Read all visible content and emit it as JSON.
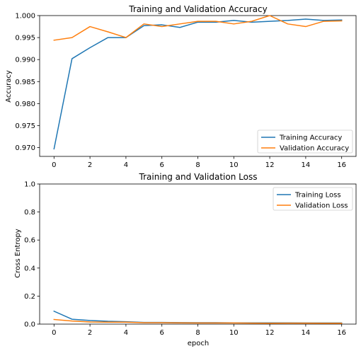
{
  "chart_data": [
    {
      "type": "line",
      "title": "Training and Validation Accuracy",
      "xlabel": "",
      "ylabel": "Accuracy",
      "xlim": [
        -0.8,
        16.8
      ],
      "ylim": [
        0.968,
        1.0
      ],
      "xticks": [
        0,
        2,
        4,
        6,
        8,
        10,
        12,
        14,
        16
      ],
      "xtick_labels": [
        "0",
        "2",
        "4",
        "6",
        "8",
        "10",
        "12",
        "14",
        "16"
      ],
      "yticks": [
        0.97,
        0.975,
        0.98,
        0.985,
        0.99,
        0.995,
        1.0
      ],
      "ytick_labels": [
        "0.970",
        "0.975",
        "0.980",
        "0.985",
        "0.990",
        "0.995",
        "1.000"
      ],
      "legend_position": "lower-right",
      "grid": false,
      "x": [
        0,
        1,
        2,
        3,
        4,
        5,
        6,
        7,
        8,
        9,
        10,
        11,
        12,
        13,
        14,
        15,
        16
      ],
      "series": [
        {
          "name": "Training Accuracy",
          "color": "#1f77b4",
          "values": [
            0.9697,
            0.9902,
            0.9927,
            0.995,
            0.995,
            0.9977,
            0.9979,
            0.9973,
            0.9985,
            0.9985,
            0.9989,
            0.9985,
            0.9987,
            0.9989,
            0.9992,
            0.9989,
            0.999
          ]
        },
        {
          "name": "Validation Accuracy",
          "color": "#ff7f0e",
          "values": [
            0.9944,
            0.995,
            0.9975,
            0.9963,
            0.995,
            0.9981,
            0.9975,
            0.9981,
            0.9987,
            0.9987,
            0.9981,
            0.9987,
            1.0,
            0.9981,
            0.9975,
            0.9987,
            0.9988
          ]
        }
      ]
    },
    {
      "type": "line",
      "title": "Training and Validation Loss",
      "xlabel": "epoch",
      "ylabel": "Cross Entropy",
      "xlim": [
        -0.8,
        16.8
      ],
      "ylim": [
        0.0,
        1.0
      ],
      "xticks": [
        0,
        2,
        4,
        6,
        8,
        10,
        12,
        14,
        16
      ],
      "xtick_labels": [
        "0",
        "2",
        "4",
        "6",
        "8",
        "10",
        "12",
        "14",
        "16"
      ],
      "yticks": [
        0.0,
        0.2,
        0.4,
        0.6,
        0.8,
        1.0
      ],
      "ytick_labels": [
        "0.0",
        "0.2",
        "0.4",
        "0.6",
        "0.8",
        "1.0"
      ],
      "legend_position": "upper-right",
      "grid": false,
      "x": [
        0,
        1,
        2,
        3,
        4,
        5,
        6,
        7,
        8,
        9,
        10,
        11,
        12,
        13,
        14,
        15,
        16
      ],
      "series": [
        {
          "name": "Training Loss",
          "color": "#1f77b4",
          "values": [
            0.092,
            0.035,
            0.026,
            0.02,
            0.017,
            0.012,
            0.012,
            0.011,
            0.01,
            0.01,
            0.009,
            0.009,
            0.009,
            0.009,
            0.008,
            0.008,
            0.008
          ]
        },
        {
          "name": "Validation Loss",
          "color": "#ff7f0e",
          "values": [
            0.033,
            0.022,
            0.015,
            0.014,
            0.014,
            0.01,
            0.01,
            0.009,
            0.008,
            0.008,
            0.008,
            0.007,
            0.006,
            0.007,
            0.007,
            0.006,
            0.006
          ]
        }
      ]
    }
  ]
}
